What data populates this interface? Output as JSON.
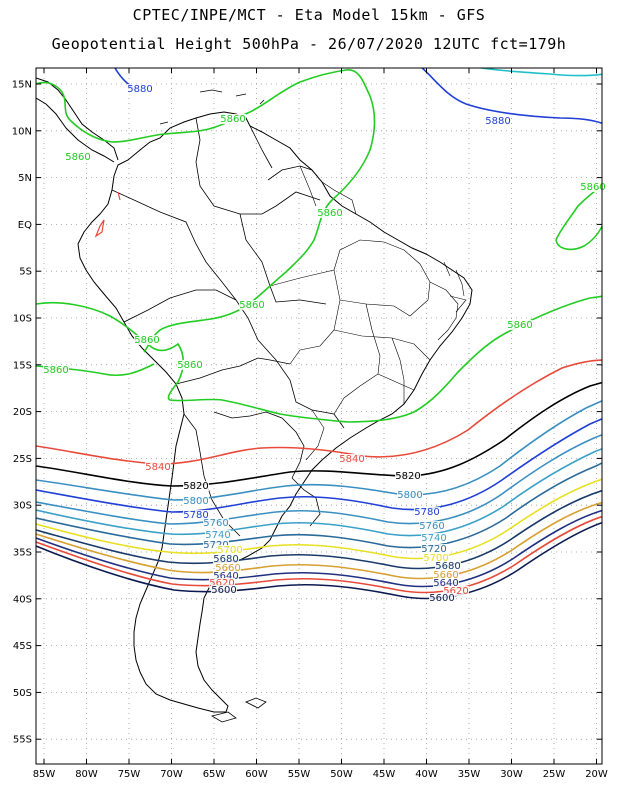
{
  "title_line1": "CPTEC/INPE/MCT -  Eta Model 15km - GFS",
  "title_line2": "Geopotential Height 500hPa - 26/07/2020 12UTC fct=179h",
  "axes": {
    "lat_labels": [
      "15N",
      "10N",
      "5N",
      "EQ",
      "5S",
      "10S",
      "15S",
      "20S",
      "25S",
      "30S",
      "35S",
      "40S",
      "45S",
      "50S",
      "55S"
    ],
    "lon_labels": [
      "85W",
      "80W",
      "75W",
      "70W",
      "65W",
      "60W",
      "55W",
      "50W",
      "45W",
      "40W",
      "35W",
      "30W",
      "25W",
      "20W"
    ]
  },
  "contour_labels": [
    {
      "text": "5880",
      "color": "#1f3fd6"
    },
    {
      "text": "5880",
      "color": "#1f3fd6"
    },
    {
      "text": "5860",
      "color": "#22cc22"
    },
    {
      "text": "5860",
      "color": "#22cc22"
    },
    {
      "text": "5860",
      "color": "#22cc22"
    },
    {
      "text": "5860",
      "color": "#22cc22"
    },
    {
      "text": "5860",
      "color": "#22cc22"
    },
    {
      "text": "5860",
      "color": "#22cc22"
    },
    {
      "text": "5860",
      "color": "#22cc22"
    },
    {
      "text": "5860",
      "color": "#22cc22"
    },
    {
      "text": "5860",
      "color": "#22cc22"
    },
    {
      "text": "5840",
      "color": "#e84a3a"
    },
    {
      "text": "5840",
      "color": "#e84a3a"
    },
    {
      "text": "5820",
      "color": "#000000"
    },
    {
      "text": "5820",
      "color": "#000000"
    },
    {
      "text": "5800",
      "color": "#3a8fc2"
    },
    {
      "text": "5800",
      "color": "#3a8fc2"
    },
    {
      "text": "5780",
      "color": "#1f3fd6"
    },
    {
      "text": "5780",
      "color": "#1f3fd6"
    },
    {
      "text": "5760",
      "color": "#3a8fc2"
    },
    {
      "text": "5760",
      "color": "#3a8fc2"
    },
    {
      "text": "5740",
      "color": "#3aa0c8"
    },
    {
      "text": "5740",
      "color": "#3aa0c8"
    },
    {
      "text": "5720",
      "color": "#2a6a9a"
    },
    {
      "text": "5720",
      "color": "#2a6a9a"
    },
    {
      "text": "5700",
      "color": "#e8e020"
    },
    {
      "text": "5700",
      "color": "#e8e020"
    },
    {
      "text": "5680",
      "color": "#1a3a6a"
    },
    {
      "text": "5680",
      "color": "#1a3a6a"
    },
    {
      "text": "5660",
      "color": "#d8a030"
    },
    {
      "text": "5660",
      "color": "#d8a030"
    },
    {
      "text": "5640",
      "color": "#203080"
    },
    {
      "text": "5640",
      "color": "#203080"
    },
    {
      "text": "5620",
      "color": "#e84a3a"
    },
    {
      "text": "5620",
      "color": "#e84a3a"
    },
    {
      "text": "5600",
      "color": "#0a1a50"
    },
    {
      "text": "5600",
      "color": "#0a1a50"
    }
  ]
}
